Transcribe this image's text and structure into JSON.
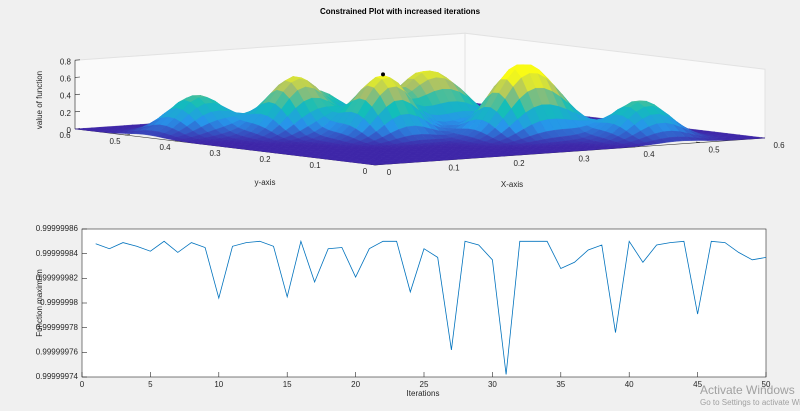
{
  "chart_data": [
    {
      "type": "surface",
      "title": "Constrained Plot with increased iterations",
      "xlabel": "X-axis",
      "ylabel": "y-axis",
      "zlabel": "value of function",
      "xlim": [
        0,
        0.6
      ],
      "ylim": [
        0,
        0.6
      ],
      "zlim": [
        0,
        0.8
      ],
      "xticks": [
        0,
        0.1,
        0.2,
        0.3,
        0.4,
        0.5,
        0.6
      ],
      "yticks": [
        0,
        0.1,
        0.2,
        0.3,
        0.4,
        0.5,
        0.6
      ],
      "zticks": [
        0,
        0.2,
        0.4,
        0.6,
        0.8
      ],
      "colormap": "parula",
      "peaks": [
        {
          "x": 0.08,
          "y": 0.46,
          "z": 0.45
        },
        {
          "x": 0.16,
          "y": 0.37,
          "z": 0.65
        },
        {
          "x": 0.23,
          "y": 0.41,
          "z": 0.4
        },
        {
          "x": 0.22,
          "y": 0.27,
          "z": 0.73
        },
        {
          "x": 0.31,
          "y": 0.32,
          "z": 0.55
        },
        {
          "x": 0.36,
          "y": 0.31,
          "z": 0.35
        },
        {
          "x": 0.35,
          "y": 0.18,
          "z": 0.65
        },
        {
          "x": 0.4,
          "y": 0.18,
          "z": 0.45
        },
        {
          "x": 0.47,
          "y": 0.08,
          "z": 0.45
        }
      ],
      "marker": {
        "x": 0.22,
        "y": 0.27,
        "z": 0.75,
        "color": "#000000"
      }
    },
    {
      "type": "line",
      "xlabel": "Iterations",
      "ylabel": "Function maximum",
      "x": [
        1,
        2,
        3,
        4,
        5,
        6,
        7,
        8,
        9,
        10,
        11,
        12,
        13,
        14,
        15,
        16,
        17,
        18,
        19,
        20,
        21,
        22,
        23,
        24,
        25,
        26,
        27,
        28,
        29,
        30,
        31,
        32,
        33,
        34,
        35,
        36,
        37,
        38,
        39,
        40,
        41,
        42,
        43,
        44,
        45,
        46,
        47,
        48,
        49,
        50
      ],
      "series": [
        {
          "color": "#0072bd",
          "values": [
            0.999999848,
            0.999999844,
            0.999999849,
            0.999999846,
            0.999999842,
            0.99999985,
            0.999999841,
            0.999999849,
            0.999999845,
            0.999999804,
            0.999999846,
            0.999999849,
            0.99999985,
            0.999999846,
            0.999999805,
            0.99999985,
            0.999999817,
            0.999999844,
            0.999999845,
            0.999999821,
            0.999999844,
            0.99999985,
            0.99999985,
            0.999999809,
            0.999999844,
            0.999999837,
            0.999999762,
            0.99999985,
            0.999999847,
            0.999999835,
            0.999999742,
            0.99999985,
            0.99999985,
            0.99999985,
            0.999999828,
            0.999999833,
            0.999999843,
            0.999999847,
            0.999999776,
            0.99999985,
            0.999999833,
            0.999999847,
            0.999999849,
            0.99999985,
            0.999999791,
            0.99999985,
            0.999999849,
            0.999999841,
            0.999999835,
            0.999999837
          ]
        }
      ],
      "xlim": [
        0,
        50
      ],
      "ylim": [
        0.99999974,
        0.99999986
      ],
      "xticks": [
        0,
        5,
        10,
        15,
        20,
        25,
        30,
        35,
        40,
        45,
        50
      ],
      "yticks": [
        0.99999974,
        0.99999976,
        0.99999978,
        0.9999998,
        0.99999982,
        0.99999984,
        0.99999986
      ]
    }
  ],
  "overlay": {
    "line1": "Activate Windows",
    "line2": "Go to Settings to activate Windows."
  }
}
